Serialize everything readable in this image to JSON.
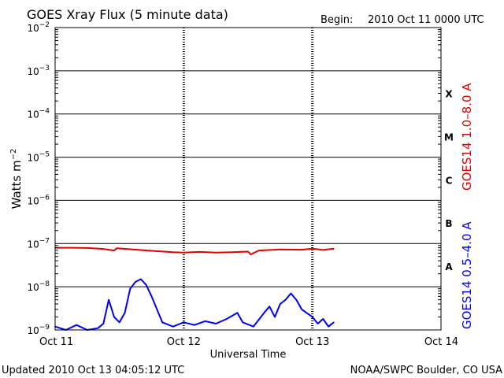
{
  "header": {
    "title": "GOES Xray Flux (5 minute data)",
    "begin_label": "Begin:",
    "begin_value": "2010 Oct 11 0000 UTC"
  },
  "footer": {
    "updated": "Updated 2010 Oct 13 04:05:12 UTC",
    "credit": "NOAA/SWPC Boulder, CO USA"
  },
  "colors": {
    "long_series": "#dd0000",
    "short_series": "#0000ee",
    "grid": "#000000"
  },
  "chart_data": {
    "type": "line",
    "title": "GOES Xray Flux (5 minute data)",
    "xlabel": "Universal Time",
    "ylabel": "Watts m-2",
    "y_scale": "log",
    "ylim": [
      1e-09,
      0.01
    ],
    "y_ticks": [
      {
        "value": 0.01,
        "base": "10",
        "exp": "-2"
      },
      {
        "value": 0.001,
        "base": "10",
        "exp": "-3"
      },
      {
        "value": 0.0001,
        "base": "10",
        "exp": "-4"
      },
      {
        "value": 1e-05,
        "base": "10",
        "exp": "-5"
      },
      {
        "value": 1e-06,
        "base": "10",
        "exp": "-6"
      },
      {
        "value": 1e-07,
        "base": "10",
        "exp": "-7"
      },
      {
        "value": 1e-08,
        "base": "10",
        "exp": "-8"
      },
      {
        "value": 1e-09,
        "base": "10",
        "exp": "-9"
      }
    ],
    "x_range": [
      "2010-10-11T00:00",
      "2010-10-14T00:00"
    ],
    "x_ticks": [
      {
        "x": "2010-10-11T00:00",
        "label": "Oct 11"
      },
      {
        "x": "2010-10-12T00:00",
        "label": "Oct 12"
      },
      {
        "x": "2010-10-13T00:00",
        "label": "Oct 13"
      },
      {
        "x": "2010-10-14T00:00",
        "label": "Oct 14"
      }
    ],
    "flare_classes": [
      {
        "label": "X",
        "value": 0.0003
      },
      {
        "label": "M",
        "value": 3e-05
      },
      {
        "label": "C",
        "value": 3e-06
      },
      {
        "label": "B",
        "value": 3e-07
      },
      {
        "label": "A",
        "value": 3e-08
      }
    ],
    "grid": true,
    "series": [
      {
        "name": "GOES14 1.0–8.0 A",
        "color": "#dd0000",
        "points": [
          [
            "2010-10-11T00:00",
            8e-08
          ],
          [
            "2010-10-11T03:00",
            8e-08
          ],
          [
            "2010-10-11T06:00",
            7.9e-08
          ],
          [
            "2010-10-11T09:00",
            7.5e-08
          ],
          [
            "2010-10-11T11:00",
            6.9e-08
          ],
          [
            "2010-10-11T11:30",
            7.8e-08
          ],
          [
            "2010-10-11T14:00",
            7.4e-08
          ],
          [
            "2010-10-11T18:00",
            6.8e-08
          ],
          [
            "2010-10-11T22:00",
            6.3e-08
          ],
          [
            "2010-10-12T00:00",
            6.2e-08
          ],
          [
            "2010-10-12T03:00",
            6.4e-08
          ],
          [
            "2010-10-12T06:00",
            6.2e-08
          ],
          [
            "2010-10-12T09:00",
            6.3e-08
          ],
          [
            "2010-10-12T12:00",
            6.5e-08
          ],
          [
            "2010-10-12T12:30",
            5.6e-08
          ],
          [
            "2010-10-12T14:00",
            6.9e-08
          ],
          [
            "2010-10-12T18:00",
            7.3e-08
          ],
          [
            "2010-10-12T22:00",
            7.2e-08
          ],
          [
            "2010-10-13T00:00",
            7.6e-08
          ],
          [
            "2010-10-13T02:00",
            7.1e-08
          ],
          [
            "2010-10-13T04:00",
            7.6e-08
          ]
        ]
      },
      {
        "name": "GOES14 0.5–4.0 A",
        "color": "#0000ee",
        "points": [
          [
            "2010-10-11T00:00",
            1.2e-09
          ],
          [
            "2010-10-11T02:00",
            1e-09
          ],
          [
            "2010-10-11T04:00",
            1.3e-09
          ],
          [
            "2010-10-11T06:00",
            1e-09
          ],
          [
            "2010-10-11T08:00",
            1.1e-09
          ],
          [
            "2010-10-11T09:00",
            1.4e-09
          ],
          [
            "2010-10-11T10:00",
            5e-09
          ],
          [
            "2010-10-11T11:00",
            2e-09
          ],
          [
            "2010-10-11T12:00",
            1.5e-09
          ],
          [
            "2010-10-11T13:00",
            2.5e-09
          ],
          [
            "2010-10-11T14:00",
            9e-09
          ],
          [
            "2010-10-11T15:00",
            1.3e-08
          ],
          [
            "2010-10-11T16:00",
            1.5e-08
          ],
          [
            "2010-10-11T17:00",
            1.1e-08
          ],
          [
            "2010-10-11T18:00",
            6e-09
          ],
          [
            "2010-10-11T19:00",
            3e-09
          ],
          [
            "2010-10-11T20:00",
            1.5e-09
          ],
          [
            "2010-10-11T22:00",
            1.2e-09
          ],
          [
            "2010-10-12T00:00",
            1.5e-09
          ],
          [
            "2010-10-12T02:00",
            1.3e-09
          ],
          [
            "2010-10-12T04:00",
            1.6e-09
          ],
          [
            "2010-10-12T06:00",
            1.4e-09
          ],
          [
            "2010-10-12T08:00",
            1.8e-09
          ],
          [
            "2010-10-12T10:00",
            2.5e-09
          ],
          [
            "2010-10-12T11:00",
            1.5e-09
          ],
          [
            "2010-10-12T13:00",
            1.2e-09
          ],
          [
            "2010-10-12T15:00",
            2.5e-09
          ],
          [
            "2010-10-12T16:00",
            3.5e-09
          ],
          [
            "2010-10-12T17:00",
            2e-09
          ],
          [
            "2010-10-12T18:00",
            4e-09
          ],
          [
            "2010-10-12T19:00",
            5e-09
          ],
          [
            "2010-10-12T20:00",
            7e-09
          ],
          [
            "2010-10-12T21:00",
            5e-09
          ],
          [
            "2010-10-12T22:00",
            3e-09
          ],
          [
            "2010-10-13T00:00",
            2e-09
          ],
          [
            "2010-10-13T01:00",
            1.4e-09
          ],
          [
            "2010-10-13T02:00",
            1.8e-09
          ],
          [
            "2010-10-13T03:00",
            1.2e-09
          ],
          [
            "2010-10-13T04:00",
            1.5e-09
          ]
        ]
      }
    ]
  }
}
